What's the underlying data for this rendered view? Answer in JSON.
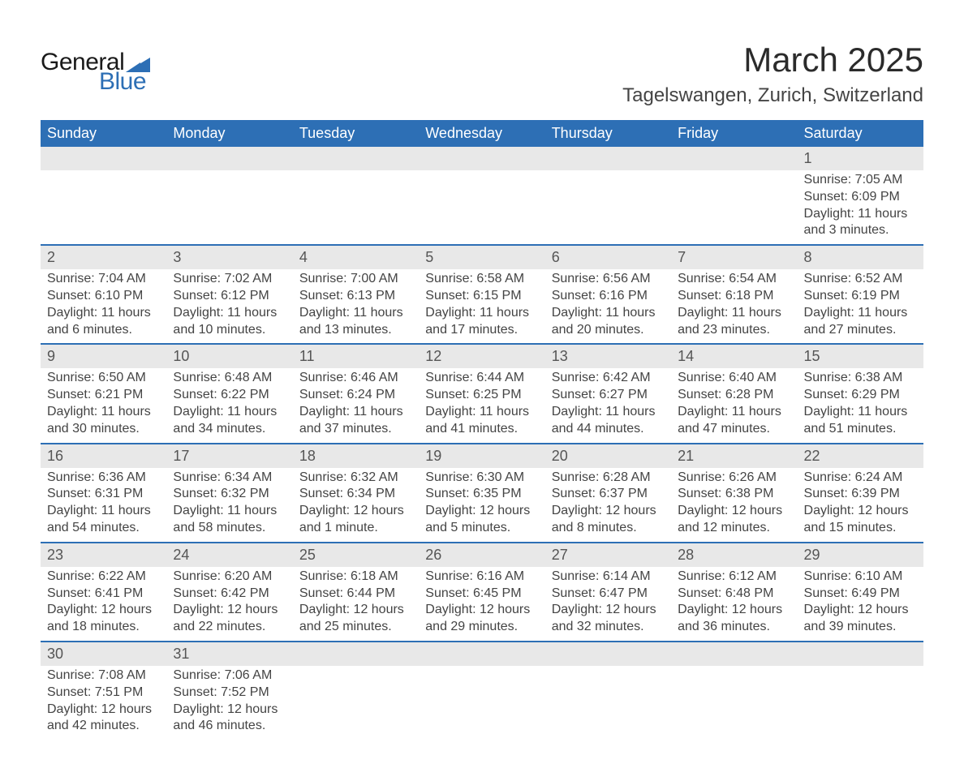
{
  "logo": {
    "text1": "General",
    "text2": "Blue",
    "color": "#2d6fb5"
  },
  "title": "March 2025",
  "location": "Tagelswangen, Zurich, Switzerland",
  "colors": {
    "header_bg": "#2d6fb5",
    "header_text": "#ffffff",
    "daynum_bg": "#e8e8e8",
    "row_border": "#2d6fb5",
    "body_text": "#444444"
  },
  "day_headers": [
    "Sunday",
    "Monday",
    "Tuesday",
    "Wednesday",
    "Thursday",
    "Friday",
    "Saturday"
  ],
  "weeks": [
    [
      null,
      null,
      null,
      null,
      null,
      null,
      {
        "n": "1",
        "sr": "Sunrise: 7:05 AM",
        "ss": "Sunset: 6:09 PM",
        "d1": "Daylight: 11 hours",
        "d2": "and 3 minutes."
      }
    ],
    [
      {
        "n": "2",
        "sr": "Sunrise: 7:04 AM",
        "ss": "Sunset: 6:10 PM",
        "d1": "Daylight: 11 hours",
        "d2": "and 6 minutes."
      },
      {
        "n": "3",
        "sr": "Sunrise: 7:02 AM",
        "ss": "Sunset: 6:12 PM",
        "d1": "Daylight: 11 hours",
        "d2": "and 10 minutes."
      },
      {
        "n": "4",
        "sr": "Sunrise: 7:00 AM",
        "ss": "Sunset: 6:13 PM",
        "d1": "Daylight: 11 hours",
        "d2": "and 13 minutes."
      },
      {
        "n": "5",
        "sr": "Sunrise: 6:58 AM",
        "ss": "Sunset: 6:15 PM",
        "d1": "Daylight: 11 hours",
        "d2": "and 17 minutes."
      },
      {
        "n": "6",
        "sr": "Sunrise: 6:56 AM",
        "ss": "Sunset: 6:16 PM",
        "d1": "Daylight: 11 hours",
        "d2": "and 20 minutes."
      },
      {
        "n": "7",
        "sr": "Sunrise: 6:54 AM",
        "ss": "Sunset: 6:18 PM",
        "d1": "Daylight: 11 hours",
        "d2": "and 23 minutes."
      },
      {
        "n": "8",
        "sr": "Sunrise: 6:52 AM",
        "ss": "Sunset: 6:19 PM",
        "d1": "Daylight: 11 hours",
        "d2": "and 27 minutes."
      }
    ],
    [
      {
        "n": "9",
        "sr": "Sunrise: 6:50 AM",
        "ss": "Sunset: 6:21 PM",
        "d1": "Daylight: 11 hours",
        "d2": "and 30 minutes."
      },
      {
        "n": "10",
        "sr": "Sunrise: 6:48 AM",
        "ss": "Sunset: 6:22 PM",
        "d1": "Daylight: 11 hours",
        "d2": "and 34 minutes."
      },
      {
        "n": "11",
        "sr": "Sunrise: 6:46 AM",
        "ss": "Sunset: 6:24 PM",
        "d1": "Daylight: 11 hours",
        "d2": "and 37 minutes."
      },
      {
        "n": "12",
        "sr": "Sunrise: 6:44 AM",
        "ss": "Sunset: 6:25 PM",
        "d1": "Daylight: 11 hours",
        "d2": "and 41 minutes."
      },
      {
        "n": "13",
        "sr": "Sunrise: 6:42 AM",
        "ss": "Sunset: 6:27 PM",
        "d1": "Daylight: 11 hours",
        "d2": "and 44 minutes."
      },
      {
        "n": "14",
        "sr": "Sunrise: 6:40 AM",
        "ss": "Sunset: 6:28 PM",
        "d1": "Daylight: 11 hours",
        "d2": "and 47 minutes."
      },
      {
        "n": "15",
        "sr": "Sunrise: 6:38 AM",
        "ss": "Sunset: 6:29 PM",
        "d1": "Daylight: 11 hours",
        "d2": "and 51 minutes."
      }
    ],
    [
      {
        "n": "16",
        "sr": "Sunrise: 6:36 AM",
        "ss": "Sunset: 6:31 PM",
        "d1": "Daylight: 11 hours",
        "d2": "and 54 minutes."
      },
      {
        "n": "17",
        "sr": "Sunrise: 6:34 AM",
        "ss": "Sunset: 6:32 PM",
        "d1": "Daylight: 11 hours",
        "d2": "and 58 minutes."
      },
      {
        "n": "18",
        "sr": "Sunrise: 6:32 AM",
        "ss": "Sunset: 6:34 PM",
        "d1": "Daylight: 12 hours",
        "d2": "and 1 minute."
      },
      {
        "n": "19",
        "sr": "Sunrise: 6:30 AM",
        "ss": "Sunset: 6:35 PM",
        "d1": "Daylight: 12 hours",
        "d2": "and 5 minutes."
      },
      {
        "n": "20",
        "sr": "Sunrise: 6:28 AM",
        "ss": "Sunset: 6:37 PM",
        "d1": "Daylight: 12 hours",
        "d2": "and 8 minutes."
      },
      {
        "n": "21",
        "sr": "Sunrise: 6:26 AM",
        "ss": "Sunset: 6:38 PM",
        "d1": "Daylight: 12 hours",
        "d2": "and 12 minutes."
      },
      {
        "n": "22",
        "sr": "Sunrise: 6:24 AM",
        "ss": "Sunset: 6:39 PM",
        "d1": "Daylight: 12 hours",
        "d2": "and 15 minutes."
      }
    ],
    [
      {
        "n": "23",
        "sr": "Sunrise: 6:22 AM",
        "ss": "Sunset: 6:41 PM",
        "d1": "Daylight: 12 hours",
        "d2": "and 18 minutes."
      },
      {
        "n": "24",
        "sr": "Sunrise: 6:20 AM",
        "ss": "Sunset: 6:42 PM",
        "d1": "Daylight: 12 hours",
        "d2": "and 22 minutes."
      },
      {
        "n": "25",
        "sr": "Sunrise: 6:18 AM",
        "ss": "Sunset: 6:44 PM",
        "d1": "Daylight: 12 hours",
        "d2": "and 25 minutes."
      },
      {
        "n": "26",
        "sr": "Sunrise: 6:16 AM",
        "ss": "Sunset: 6:45 PM",
        "d1": "Daylight: 12 hours",
        "d2": "and 29 minutes."
      },
      {
        "n": "27",
        "sr": "Sunrise: 6:14 AM",
        "ss": "Sunset: 6:47 PM",
        "d1": "Daylight: 12 hours",
        "d2": "and 32 minutes."
      },
      {
        "n": "28",
        "sr": "Sunrise: 6:12 AM",
        "ss": "Sunset: 6:48 PM",
        "d1": "Daylight: 12 hours",
        "d2": "and 36 minutes."
      },
      {
        "n": "29",
        "sr": "Sunrise: 6:10 AM",
        "ss": "Sunset: 6:49 PM",
        "d1": "Daylight: 12 hours",
        "d2": "and 39 minutes."
      }
    ],
    [
      {
        "n": "30",
        "sr": "Sunrise: 7:08 AM",
        "ss": "Sunset: 7:51 PM",
        "d1": "Daylight: 12 hours",
        "d2": "and 42 minutes."
      },
      {
        "n": "31",
        "sr": "Sunrise: 7:06 AM",
        "ss": "Sunset: 7:52 PM",
        "d1": "Daylight: 12 hours",
        "d2": "and 46 minutes."
      },
      null,
      null,
      null,
      null,
      null
    ]
  ]
}
